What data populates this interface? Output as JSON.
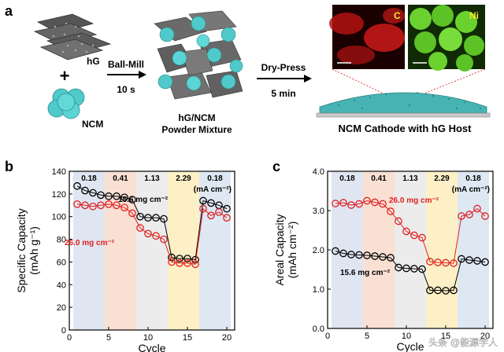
{
  "panel_a": {
    "letter": "a",
    "hg_label": "hG",
    "plus": "+",
    "ncm_label": "NCM",
    "step1_label": "Ball-Mill",
    "step1_time": "10 s",
    "mixture_line1": "hG/NCM",
    "mixture_line2": "Powder Mixture",
    "step2_label": "Dry-Press",
    "step2_time": "5 min",
    "map_c_label": "C",
    "map_ni_label": "Ni",
    "cathode_caption": "NCM Cathode with hG Host",
    "colors": {
      "ncm": "#4fc9c9",
      "carbon_map": "#d81a1a",
      "nickel_map": "#6ad12e",
      "ni_label": "#f5e62a",
      "c_label": "#f5e62a"
    }
  },
  "watermark": "头条 @能源学人",
  "chart_data": [
    {
      "panel": "b",
      "type": "scatter",
      "xlabel": "Cycle",
      "ylabel_line1": "Specific Capacity",
      "ylabel_line2": "(mAh g⁻¹)",
      "xlim": [
        0,
        21
      ],
      "ylim": [
        0,
        140
      ],
      "xticks": [
        "0",
        "5",
        "10",
        "15",
        "20"
      ],
      "xtick_values": [
        0,
        5,
        10,
        15,
        20
      ],
      "yticks": [
        "0",
        "20",
        "40",
        "60",
        "80",
        "100",
        "120",
        "140"
      ],
      "ytick_values": [
        0,
        20,
        40,
        60,
        80,
        100,
        120,
        140
      ],
      "rate_bands": [
        {
          "label": "0.18",
          "from": 0.5,
          "to": 4.5,
          "color": "#dfe6f2"
        },
        {
          "label": "0.41",
          "from": 4.5,
          "to": 8.5,
          "color": "#f9e0d3"
        },
        {
          "label": "1.13",
          "from": 8.5,
          "to": 12.5,
          "color": "#ececec"
        },
        {
          "label": "2.29",
          "from": 12.5,
          "to": 16.5,
          "color": "#fdf0c7"
        },
        {
          "label": "0.18",
          "from": 16.5,
          "to": 20.5,
          "color": "#dde8f3"
        }
      ],
      "rate_unit": "(mA cm⁻²)",
      "series": [
        {
          "name": "15.6 mg cm⁻²",
          "color": "#000000",
          "x": [
            1,
            2,
            3,
            4,
            5,
            6,
            7,
            8,
            9,
            10,
            11,
            12,
            13,
            14,
            15,
            16,
            17,
            18,
            19,
            20
          ],
          "y": [
            127,
            123,
            121,
            119,
            118,
            118,
            117,
            115,
            100,
            99,
            99,
            98,
            64,
            63,
            63,
            62,
            114,
            112,
            110,
            107
          ]
        },
        {
          "name": "26.0 mg cm⁻²",
          "color": "#e02020",
          "x": [
            1,
            2,
            3,
            4,
            5,
            6,
            7,
            8,
            9,
            10,
            11,
            12,
            13,
            14,
            15,
            16,
            17,
            18,
            19,
            20
          ],
          "y": [
            111,
            110,
            109,
            110,
            111,
            110,
            108,
            103,
            90,
            85,
            83,
            80,
            60,
            59,
            59,
            58,
            107,
            101,
            104,
            99
          ]
        }
      ]
    },
    {
      "panel": "c",
      "type": "scatter",
      "xlabel": "Cycle",
      "ylabel_line1": "Areal Capacity",
      "ylabel_line2": "(mAh cm⁻²)",
      "xlim": [
        0,
        21
      ],
      "ylim": [
        0,
        4.0
      ],
      "xticks": [
        "0",
        "5",
        "10",
        "15",
        "20"
      ],
      "xtick_values": [
        0,
        5,
        10,
        15,
        20
      ],
      "yticks": [
        "0.0",
        "1.0",
        "2.0",
        "3.0",
        "4.0"
      ],
      "ytick_values": [
        0,
        1,
        2,
        3,
        4
      ],
      "rate_bands": [
        {
          "label": "0.18",
          "from": 0.5,
          "to": 4.5,
          "color": "#dfe6f2"
        },
        {
          "label": "0.41",
          "from": 4.5,
          "to": 8.5,
          "color": "#f9e0d3"
        },
        {
          "label": "1.13",
          "from": 8.5,
          "to": 12.5,
          "color": "#ececec"
        },
        {
          "label": "2.29",
          "from": 12.5,
          "to": 16.5,
          "color": "#fdf0c7"
        },
        {
          "label": "0.18",
          "from": 16.5,
          "to": 20.5,
          "color": "#dde8f3"
        }
      ],
      "rate_unit": "(mA cm⁻²)",
      "series": [
        {
          "name": "26.0 mg cm⁻²",
          "color": "#e02020",
          "x": [
            1,
            2,
            3,
            4,
            5,
            6,
            7,
            8,
            9,
            10,
            11,
            12,
            13,
            14,
            15,
            16,
            17,
            18,
            19,
            20
          ],
          "y": [
            3.18,
            3.2,
            3.14,
            3.17,
            3.25,
            3.21,
            3.17,
            2.98,
            2.73,
            2.47,
            2.37,
            2.31,
            1.7,
            1.68,
            1.67,
            1.66,
            2.86,
            2.9,
            3.05,
            2.86
          ]
        },
        {
          "name": "15.6 mg cm⁻²",
          "color": "#000000",
          "x": [
            1,
            2,
            3,
            4,
            5,
            6,
            7,
            8,
            9,
            10,
            11,
            12,
            13,
            14,
            15,
            16,
            17,
            18,
            19,
            20
          ],
          "y": [
            1.97,
            1.91,
            1.88,
            1.87,
            1.86,
            1.84,
            1.82,
            1.8,
            1.55,
            1.53,
            1.52,
            1.51,
            0.97,
            0.97,
            0.96,
            0.97,
            1.77,
            1.74,
            1.72,
            1.69
          ]
        }
      ]
    }
  ]
}
